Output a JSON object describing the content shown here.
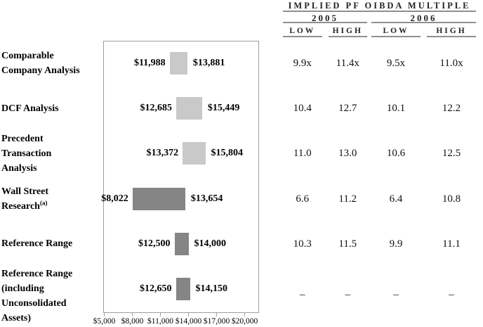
{
  "chart_data": {
    "type": "bar",
    "orientation": "horizontal_range",
    "title": "",
    "xlim": [
      5000,
      21390
    ],
    "x_tick_values": [
      5000,
      8000,
      11000,
      14000,
      17000,
      20000
    ],
    "x_tick_labels": [
      "$5,000",
      "$8,000",
      "$11,000",
      "$14,000",
      "$17,000",
      "$20,000"
    ],
    "grid": "off",
    "bar_colors": {
      "light": "#c9c9c9",
      "dark": "#858585"
    },
    "rows": [
      {
        "label_lines": [
          "Comparable",
          "Company Analysis"
        ],
        "low": 11988,
        "high": 13881,
        "low_label": "$11,988",
        "high_label": "$13,881",
        "shade": "light"
      },
      {
        "label_lines": [
          "DCF Analysis"
        ],
        "low": 12685,
        "high": 15449,
        "low_label": "$12,685",
        "high_label": "$15,449",
        "shade": "light"
      },
      {
        "label_lines": [
          "Precedent",
          "Transaction",
          "Analysis"
        ],
        "low": 13372,
        "high": 15804,
        "low_label": "$13,372",
        "high_label": "$15,804",
        "shade": "light"
      },
      {
        "label_lines": [
          "Wall Street",
          "Research"
        ],
        "label_superscript": "(a)",
        "low": 8022,
        "high": 13654,
        "low_label": "$8,022",
        "high_label": "$13,654",
        "shade": "dark"
      },
      {
        "label_lines": [
          "Reference Range"
        ],
        "low": 12500,
        "high": 14000,
        "low_label": "$12,500",
        "high_label": "$14,000",
        "shade": "dark"
      },
      {
        "label_lines": [
          "Reference Range",
          "(including",
          "Unconsolidated",
          "Assets)"
        ],
        "low": 12650,
        "high": 14150,
        "low_label": "$12,650",
        "high_label": "$14,150",
        "shade": "dark"
      }
    ]
  },
  "multiples_table": {
    "title": "IMPLIED PF OIBDA MULTIPLE",
    "year_groups": [
      {
        "year": "2005",
        "columns": [
          "LOW",
          "HIGH"
        ]
      },
      {
        "year": "2006",
        "columns": [
          "LOW",
          "HIGH"
        ]
      }
    ],
    "rows": [
      [
        "9.9x",
        "11.4x",
        "9.5x",
        "11.0x"
      ],
      [
        "10.4",
        "12.7",
        "10.1",
        "12.2"
      ],
      [
        "11.0",
        "13.0",
        "10.6",
        "12.5"
      ],
      [
        "6.6",
        "11.2",
        "6.4",
        "10.8"
      ],
      [
        "10.3",
        "11.5",
        "9.9",
        "11.1"
      ],
      [
        "–",
        "–",
        "–",
        "–"
      ]
    ]
  }
}
